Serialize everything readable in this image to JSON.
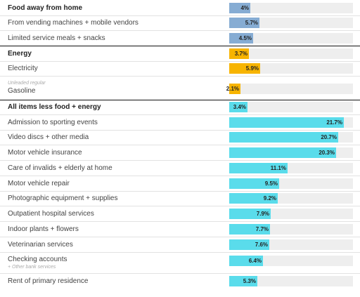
{
  "colors": {
    "food": "#86acd3",
    "energy": "#f7b400",
    "core": "#5adceb",
    "track": "#eeeeee",
    "divider_light": "#e2e2e2",
    "divider_dark": "#111111"
  },
  "chart_data": {
    "type": "bar",
    "orientation": "horizontal",
    "title": "",
    "xlabel": "",
    "ylabel": "",
    "xlim": [
      0,
      22
    ],
    "grid": false,
    "rows": [
      {
        "label": "Food away from home",
        "bold": true,
        "group": "food",
        "value": 4,
        "value_label": "4%"
      },
      {
        "label": "From vending machines + mobile vendors",
        "group": "food",
        "value": 5.7,
        "value_label": "5.7%"
      },
      {
        "label": "Limited service meals + snacks",
        "group": "food",
        "value": 4.5,
        "value_label": "4.5%"
      },
      {
        "label": "Energy",
        "bold": true,
        "group": "energy",
        "value": 3.7,
        "value_label": "3.7%"
      },
      {
        "label": "Electricity",
        "group": "energy",
        "value": 5.9,
        "value_label": "5.9%"
      },
      {
        "label": "Gasoline",
        "sublabel": "Unleaded regular",
        "sublabel_pos": "above",
        "group": "energy",
        "value": 2.1,
        "value_label": "2.1%"
      },
      {
        "label": "All items less food + energy",
        "bold": true,
        "group": "core",
        "value": 3.4,
        "value_label": "3.4%"
      },
      {
        "label": "Admission to sporting events",
        "group": "core",
        "value": 21.7,
        "value_label": "21.7%"
      },
      {
        "label": "Video discs + other media",
        "group": "core",
        "value": 20.7,
        "value_label": "20.7%"
      },
      {
        "label": "Motor vehicle insurance",
        "group": "core",
        "value": 20.3,
        "value_label": "20.3%"
      },
      {
        "label": "Care of invalids + elderly at home",
        "group": "core",
        "value": 11.1,
        "value_label": "11.1%"
      },
      {
        "label": "Motor vehicle repair",
        "group": "core",
        "value": 9.5,
        "value_label": "9.5%"
      },
      {
        "label": "Photographic equipment + supplies",
        "group": "core",
        "value": 9.2,
        "value_label": "9.2%"
      },
      {
        "label": "Outpatient hospital services",
        "group": "core",
        "value": 7.9,
        "value_label": "7.9%"
      },
      {
        "label": "Indoor plants + flowers",
        "group": "core",
        "value": 7.7,
        "value_label": "7.7%"
      },
      {
        "label": "Veterinarian services",
        "group": "core",
        "value": 7.6,
        "value_label": "7.6%"
      },
      {
        "label": "Checking accounts",
        "sublabel": "+ Other bank services",
        "sublabel_pos": "below",
        "group": "core",
        "value": 6.4,
        "value_label": "6.4%"
      },
      {
        "label": "Rent of primary residence",
        "group": "core",
        "value": 5.3,
        "value_label": "5.3%"
      }
    ]
  }
}
